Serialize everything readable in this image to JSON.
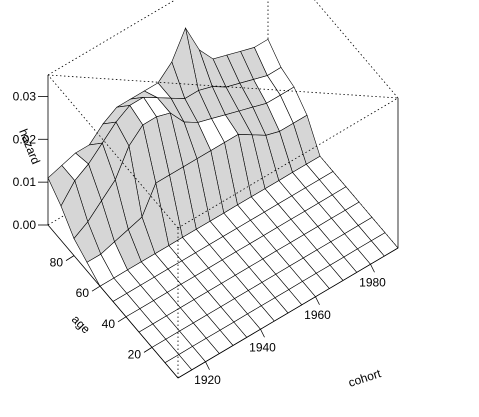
{
  "chart_data": {
    "type": "surface3d",
    "xlabel": "cohort",
    "ylabel": "age",
    "zlabel": "hazard",
    "xlim": [
      1910,
      1990
    ],
    "ylim": [
      0,
      100
    ],
    "zlim": [
      0,
      0.035
    ],
    "x_ticks": [
      1920,
      1940,
      1960,
      1980
    ],
    "y_ticks": [
      20,
      40,
      60,
      80
    ],
    "z_ticks": [
      "0.00",
      "0.01",
      "0.02",
      "0.03"
    ],
    "grid_x": [
      1910,
      1915,
      1920,
      1925,
      1930,
      1935,
      1940,
      1945,
      1950,
      1955,
      1960,
      1965,
      1970,
      1975,
      1980,
      1985,
      1990
    ],
    "grid_y": [
      0,
      10,
      20,
      30,
      40,
      50,
      60,
      70,
      80,
      90,
      100
    ],
    "z": [
      [
        0,
        0,
        0,
        0,
        0,
        0,
        0,
        0,
        0,
        0,
        0,
        0,
        0,
        0,
        0,
        0,
        0
      ],
      [
        0,
        0,
        0,
        0,
        0,
        0,
        0,
        0,
        0,
        0,
        0,
        0,
        0,
        0,
        0,
        0,
        0
      ],
      [
        0,
        0,
        0,
        0,
        0,
        0,
        0,
        0,
        0,
        0,
        0,
        0,
        0,
        0,
        0,
        0,
        0
      ],
      [
        0,
        0,
        0,
        0,
        0,
        0,
        0,
        0,
        0,
        0,
        0,
        0,
        0,
        0,
        0,
        0,
        0
      ],
      [
        0,
        0,
        0,
        0,
        0,
        0,
        0,
        0,
        0,
        0,
        0,
        0,
        0,
        0,
        0,
        0,
        0
      ],
      [
        0,
        0,
        0,
        0,
        0,
        0,
        0,
        0,
        0,
        0,
        0,
        0,
        0,
        0,
        0,
        0,
        0
      ],
      [
        0,
        0,
        0,
        0,
        0,
        0,
        0,
        0,
        0,
        0,
        0,
        0,
        0,
        0,
        0,
        0,
        0
      ],
      [
        0.002,
        0.002,
        0.003,
        0.004,
        0.005,
        0.011,
        0.011,
        0.011,
        0.011,
        0.011,
        0.011,
        0.011,
        0.009,
        0.007,
        0.006,
        0.006,
        0.006
      ],
      [
        0.004,
        0.006,
        0.009,
        0.012,
        0.018,
        0.021,
        0.021,
        0.02,
        0.016,
        0.014,
        0.013,
        0.012,
        0.011,
        0.01,
        0.009,
        0.009,
        0.009
      ],
      [
        0.008,
        0.012,
        0.014,
        0.017,
        0.02,
        0.022,
        0.022,
        0.02,
        0.018,
        0.016,
        0.016,
        0.015,
        0.013,
        0.012,
        0.011,
        0.01,
        0.01
      ],
      [
        0.011,
        0.012,
        0.013,
        0.013,
        0.016,
        0.018,
        0.018,
        0.018,
        0.018,
        0.021,
        0.027,
        0.02,
        0.016,
        0.015,
        0.014,
        0.013,
        0.013
      ]
    ],
    "view": {
      "theta": -35,
      "phi": 25
    },
    "facet_color": "#ffffff"
  }
}
